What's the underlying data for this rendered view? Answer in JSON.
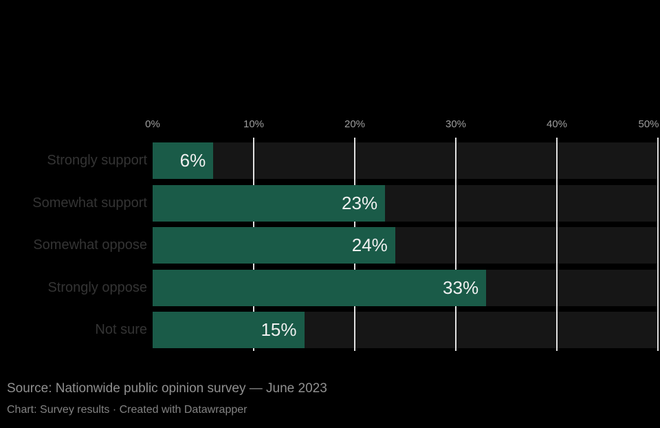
{
  "colors": {
    "background": "#000000",
    "bar": "#1a5b48",
    "track": "#161616",
    "gridline": "#ffffff",
    "tick_label": "#9e9e9e",
    "category_label": "#343434",
    "value_label": "#f0f0f0",
    "footer_text": "#909090"
  },
  "axis": {
    "ticks": [
      {
        "label": "0%"
      },
      {
        "label": "10%"
      },
      {
        "label": "20%"
      },
      {
        "label": "30%"
      },
      {
        "label": "40%"
      },
      {
        "label": "50%"
      }
    ]
  },
  "rows": [
    {
      "category": "Strongly support",
      "value": 6,
      "value_label": "6%"
    },
    {
      "category": "Somewhat support",
      "value": 23,
      "value_label": "23%"
    },
    {
      "category": "Somewhat oppose",
      "value": 24,
      "value_label": "24%"
    },
    {
      "category": "Strongly oppose",
      "value": 33,
      "value_label": "33%"
    },
    {
      "category": "Not sure",
      "value": 15,
      "value_label": "15%"
    }
  ],
  "footer": {
    "source_line": "Source: Nationwide public opinion survey — June 2023",
    "byline_line": "Chart: Survey results · Created with Datawrapper"
  },
  "chart_data": {
    "type": "bar",
    "orientation": "horizontal",
    "categories": [
      "Strongly support",
      "Somewhat support",
      "Somewhat oppose",
      "Strongly oppose",
      "Not sure"
    ],
    "values": [
      6,
      23,
      24,
      33,
      15
    ],
    "data_labels": [
      "6%",
      "23%",
      "24%",
      "33%",
      "15%"
    ],
    "title": "",
    "xlabel": "",
    "ylabel": "",
    "xlim": [
      0,
      50
    ],
    "xticks": [
      "0%",
      "10%",
      "20%",
      "30%",
      "40%",
      "50%"
    ],
    "grid": "vertical",
    "legend": "none",
    "theme": "dark"
  }
}
